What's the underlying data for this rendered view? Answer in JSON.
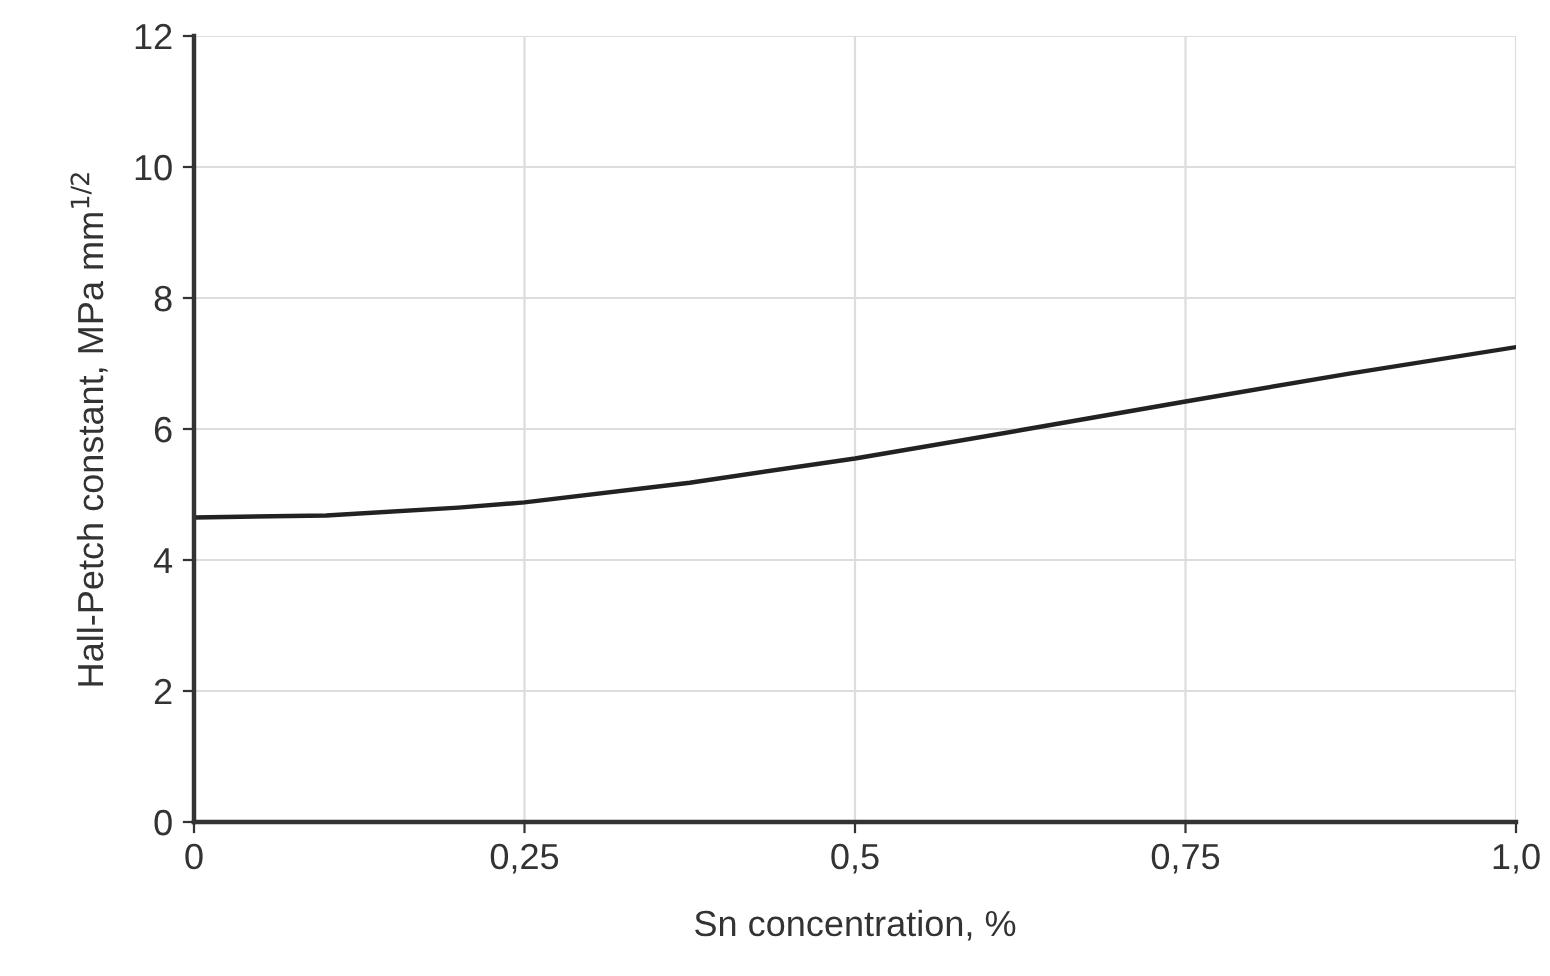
{
  "chart_data": {
    "type": "line",
    "xlabel": "Sn concentration, %",
    "ylabel": "Hall-Petch constant, MPa mm$^{1/2}$",
    "x": [
      0,
      0.1,
      0.2,
      0.25,
      0.375,
      0.5,
      0.625,
      0.75,
      0.875,
      1.0
    ],
    "series": [
      {
        "color": "#222222",
        "values": [
          4.65,
          4.68,
          4.8,
          4.88,
          5.18,
          5.55,
          5.98,
          6.42,
          6.85,
          7.25
        ]
      }
    ],
    "xlim": [
      0,
      1.0
    ],
    "xticks": [
      0,
      {
        "value": 0.25,
        "label": "0,25"
      },
      {
        "value": 0.5,
        "label": "0,5"
      },
      {
        "value": 0.75,
        "label": "0,75"
      },
      {
        "value": 1.0,
        "label": "1,0"
      }
    ],
    "ylim": [
      0,
      12
    ],
    "yticks": [
      0,
      2,
      4,
      6,
      8,
      10,
      12
    ],
    "grid": true,
    "marker": "none",
    "line_style": "solid"
  }
}
